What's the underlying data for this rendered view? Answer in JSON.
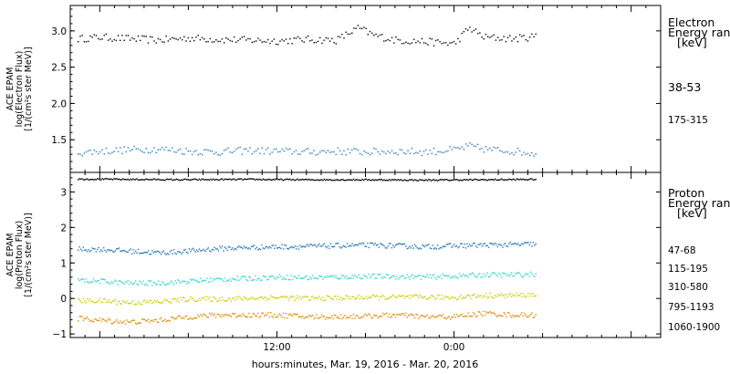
{
  "xlabel": "hours:minutes, Mar. 19, 2016 - Mar. 20, 2016",
  "x_tick_labels": [
    {
      "hours": 12,
      "label": "12:00"
    },
    {
      "hours": 24,
      "label": "0:00"
    }
  ],
  "x_range_hours": [
    -2.0,
    38.0
  ],
  "chart_data": [
    {
      "type": "scatter",
      "ylabel_lines": [
        "ACE EPAM",
        "log(Electron Flux)",
        "[1/(cm²s ster MeV)]"
      ],
      "ylim": [
        1.05,
        3.35
      ],
      "yticks": [
        {
          "value": 1.5,
          "label": "1.5"
        },
        {
          "value": 2.0,
          "label": "2.0"
        },
        {
          "value": 2.5,
          "label": "2.5"
        },
        {
          "value": 3.0,
          "label": "3.0"
        }
      ],
      "legend_title": [
        "Electron",
        "Energy ran",
        "[keV]"
      ],
      "series": [
        {
          "name": "38-53",
          "color": "#000000",
          "x_hours": [
            -1.5,
            0,
            2,
            4,
            6,
            8,
            10,
            12,
            14,
            16,
            17.5,
            18.5,
            20,
            22,
            24,
            25,
            26,
            28,
            29.5
          ],
          "values": [
            2.9,
            2.92,
            2.9,
            2.88,
            2.91,
            2.89,
            2.88,
            2.87,
            2.89,
            2.88,
            3.05,
            2.95,
            2.88,
            2.86,
            2.83,
            3.05,
            2.92,
            2.9,
            2.93
          ]
        },
        {
          "name": "175-315",
          "color": "#1f77b4",
          "x_hours": [
            -1.5,
            0,
            2,
            4,
            6,
            8,
            10,
            12,
            14,
            16,
            18,
            20,
            22,
            24,
            25,
            26,
            28,
            29.5
          ],
          "values": [
            1.33,
            1.35,
            1.37,
            1.38,
            1.35,
            1.34,
            1.36,
            1.35,
            1.34,
            1.35,
            1.34,
            1.35,
            1.34,
            1.37,
            1.42,
            1.38,
            1.35,
            1.32
          ]
        }
      ]
    },
    {
      "type": "scatter",
      "ylabel_lines": [
        "ACE EPAM",
        "log(Proton Flux)",
        "[1/(cm²s ster MeV)]"
      ],
      "ylim": [
        -1.1,
        3.55
      ],
      "yticks": [
        {
          "value": -1,
          "label": "−1"
        },
        {
          "value": 0,
          "label": "0"
        },
        {
          "value": 1,
          "label": "1"
        },
        {
          "value": 2,
          "label": "2"
        },
        {
          "value": 3,
          "label": "3"
        }
      ],
      "legend_title": [
        "Proton",
        "Energy ran",
        "[keV]"
      ],
      "series": [
        {
          "name": "47-68",
          "color": "#000000",
          "x_hours": [
            -1.5,
            2,
            6,
            10,
            14,
            18,
            22,
            26,
            29.5
          ],
          "values": [
            3.38,
            3.37,
            3.36,
            3.37,
            3.36,
            3.36,
            3.35,
            3.36,
            3.37
          ]
        },
        {
          "name": "115-195",
          "color": "#1f77b4",
          "x_hours": [
            -1.5,
            0,
            2,
            4,
            6,
            8,
            10,
            12,
            14,
            16,
            18,
            20,
            22,
            24,
            26,
            28,
            29.5
          ],
          "values": [
            1.4,
            1.4,
            1.35,
            1.3,
            1.35,
            1.42,
            1.45,
            1.47,
            1.48,
            1.5,
            1.52,
            1.5,
            1.47,
            1.5,
            1.52,
            1.53,
            1.55
          ]
        },
        {
          "name": "310-580",
          "color": "#33d6cf",
          "x_hours": [
            -1.5,
            0,
            2,
            4,
            6,
            8,
            10,
            12,
            14,
            16,
            18,
            20,
            22,
            24,
            26,
            28,
            29.5
          ],
          "values": [
            0.52,
            0.5,
            0.45,
            0.45,
            0.5,
            0.55,
            0.58,
            0.62,
            0.6,
            0.62,
            0.64,
            0.63,
            0.62,
            0.65,
            0.68,
            0.68,
            0.7
          ]
        },
        {
          "name": "795-1193",
          "color": "#c8cf00",
          "x_hours": [
            -1.5,
            0,
            2,
            4,
            6,
            8,
            10,
            12,
            14,
            16,
            18,
            20,
            22,
            24,
            26,
            28,
            29.5
          ],
          "values": [
            -0.05,
            -0.05,
            -0.1,
            -0.08,
            0.0,
            0.0,
            0.02,
            0.05,
            0.02,
            0.03,
            0.05,
            0.05,
            0.05,
            0.05,
            0.1,
            0.1,
            0.12
          ]
        },
        {
          "name": "1060-1900",
          "color": "#e08a00",
          "x_hours": [
            -1.5,
            0,
            2,
            4,
            6,
            8,
            10,
            12,
            14,
            16,
            18,
            20,
            22,
            24,
            26,
            28,
            29.5
          ],
          "values": [
            -0.55,
            -0.6,
            -0.65,
            -0.6,
            -0.5,
            -0.45,
            -0.45,
            -0.45,
            -0.5,
            -0.5,
            -0.48,
            -0.45,
            -0.5,
            -0.5,
            -0.4,
            -0.45,
            -0.45
          ]
        }
      ]
    }
  ]
}
